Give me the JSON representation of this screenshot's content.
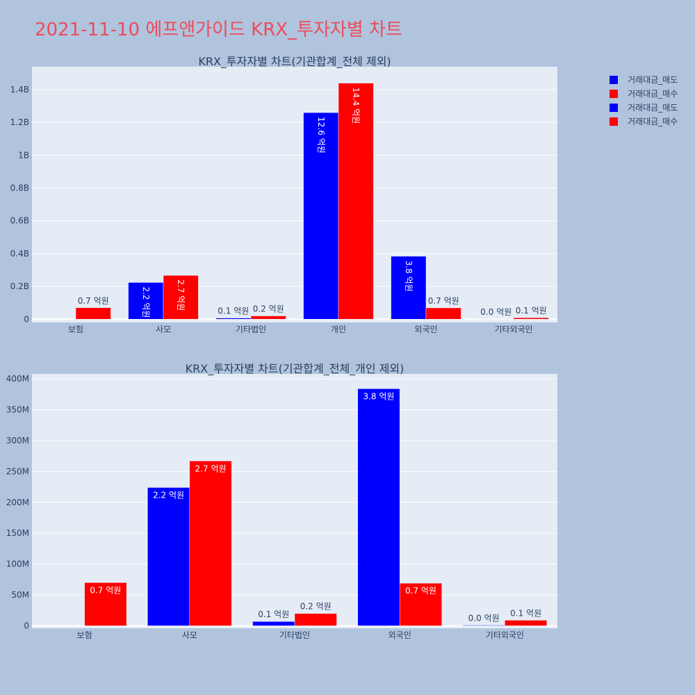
{
  "page_title": "2021-11-10 에프앤가이드 KRX_투자자별 차트",
  "colors": {
    "sell": "#0000ff",
    "buy": "#ff0000",
    "plot_bg": "#e5ecf6",
    "paper_bg": "#b0c4de"
  },
  "legend": [
    {
      "name": "거래대금_매도",
      "color": "#0000ff"
    },
    {
      "name": "거래대금_매수",
      "color": "#ff0000"
    },
    {
      "name": "거래대금_매도",
      "color": "#0000ff"
    },
    {
      "name": "거래대금_매수",
      "color": "#ff0000"
    }
  ],
  "chart_data": [
    {
      "type": "bar",
      "title": "KRX_투자자별 차트(기관합계_전체 제외)",
      "categories": [
        "보험",
        "사모",
        "기타법인",
        "개인",
        "외국인",
        "기타외국인"
      ],
      "series": [
        {
          "name": "거래대금_매도",
          "color": "#0000ff",
          "values": [
            0,
            224000000,
            7000000,
            1260000000,
            384000000,
            1000000
          ],
          "labels": [
            "",
            "2.2 억원",
            "0.1 억원",
            "12.6 억원",
            "3.8 억원",
            "0.0 억원"
          ]
        },
        {
          "name": "거래대금_매수",
          "color": "#ff0000",
          "values": [
            70000000,
            267000000,
            20000000,
            1440000000,
            69000000,
            9000000
          ],
          "labels": [
            "0.7 억원",
            "2.7 억원",
            "0.2 억원",
            "14.4 억원",
            "0.7 억원",
            "0.1 억원"
          ]
        }
      ],
      "ylim": [
        -20000000,
        1540000000
      ],
      "yticks": [
        0,
        200000000,
        400000000,
        600000000,
        800000000,
        1000000000,
        1200000000,
        1400000000
      ],
      "ytick_labels": [
        "0",
        "0.2B",
        "0.4B",
        "0.6B",
        "0.8B",
        "1B",
        "1.2B",
        "1.4B"
      ],
      "label_orientation": "vertical",
      "grid": true,
      "legend_position": "right"
    },
    {
      "type": "bar",
      "title": "KRX_투자자별 차트(기관합계_전체_개인 제외)",
      "categories": [
        "보험",
        "사모",
        "기타법인",
        "외국인",
        "기타외국인"
      ],
      "series": [
        {
          "name": "거래대금_매도",
          "color": "#0000ff",
          "values": [
            0,
            224000000,
            7000000,
            384000000,
            1000000
          ],
          "labels": [
            "",
            "2.2 억원",
            "0.1 억원",
            "3.8 억원",
            "0.0 억원"
          ]
        },
        {
          "name": "거래대금_매수",
          "color": "#ff0000",
          "values": [
            70000000,
            267000000,
            20000000,
            69000000,
            9000000
          ],
          "labels": [
            "0.7 억원",
            "2.7 억원",
            "0.2 억원",
            "0.7 억원",
            "0.1 억원"
          ]
        }
      ],
      "ylim": [
        -4000000,
        408000000
      ],
      "yticks": [
        0,
        50000000,
        100000000,
        150000000,
        200000000,
        250000000,
        300000000,
        350000000,
        400000000
      ],
      "ytick_labels": [
        "0",
        "50M",
        "100M",
        "150M",
        "200M",
        "250M",
        "300M",
        "350M",
        "400M"
      ],
      "label_orientation": "horizontal",
      "grid": true,
      "legend_position": "right"
    }
  ]
}
